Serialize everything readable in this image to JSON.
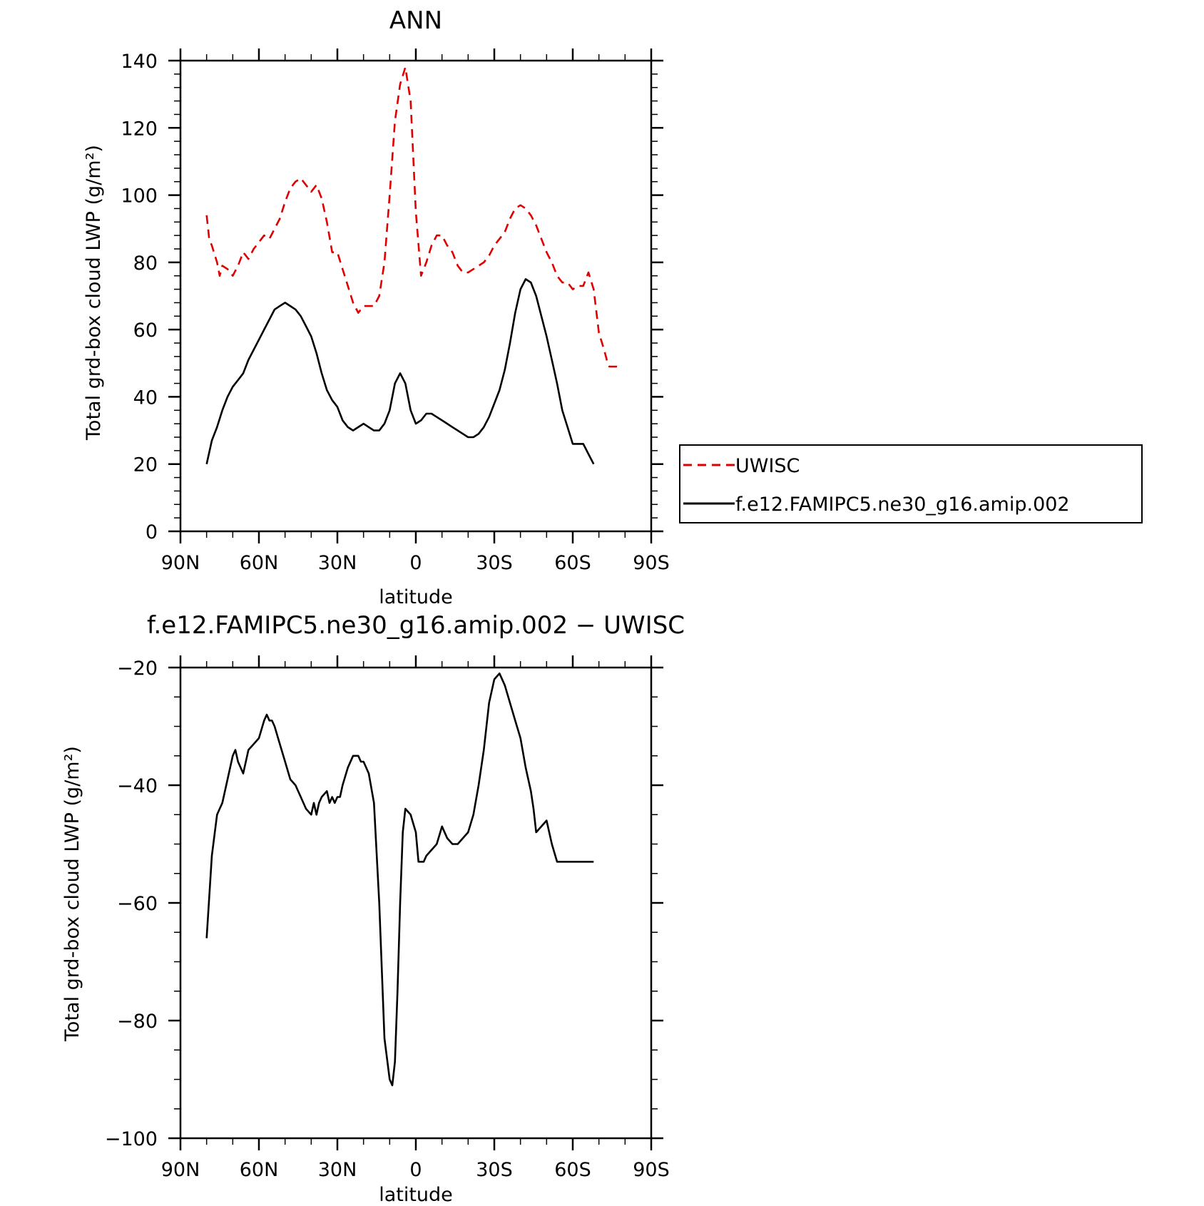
{
  "chart_data": [
    {
      "type": "line",
      "title": "ANN",
      "xlabel": "latitude",
      "ylabel": "Total grd-box cloud LWP (g/m²)",
      "xlim": [
        90,
        -90
      ],
      "ylim": [
        0,
        140
      ],
      "x_ticks": [
        90,
        60,
        30,
        0,
        -30,
        -60,
        -90
      ],
      "x_tick_labels": [
        "90N",
        "60N",
        "30N",
        "0",
        "30S",
        "60S",
        "90S"
      ],
      "y_ticks": [
        0,
        20,
        40,
        60,
        80,
        100,
        120,
        140
      ],
      "y_tick_labels": [
        "0",
        "20",
        "40",
        "60",
        "80",
        "100",
        "120",
        "140"
      ],
      "grid": false,
      "legend": "right",
      "series": [
        {
          "name": "UWISC",
          "color": "#e00000",
          "dash": "dashed",
          "x": [
            80,
            79,
            78,
            76,
            75,
            74,
            72,
            70,
            68,
            66,
            64,
            62,
            60,
            58,
            56,
            54,
            52,
            50,
            48,
            46,
            44,
            42,
            40,
            38,
            36,
            34,
            32,
            30,
            28,
            26,
            24,
            22,
            20,
            18,
            16,
            14,
            12,
            10,
            8,
            6,
            4,
            2,
            0,
            -2,
            -4,
            -6,
            -8,
            -10,
            -12,
            -14,
            -16,
            -18,
            -20,
            -22,
            -24,
            -26,
            -28,
            -30,
            -32,
            -34,
            -36,
            -38,
            -40,
            -42,
            -44,
            -46,
            -48,
            -50,
            -52,
            -54,
            -56,
            -58,
            -60,
            -62,
            -64,
            -66,
            -68,
            -70,
            -72,
            -73,
            -74,
            -76,
            -78
          ],
          "y": [
            94,
            87,
            85,
            80,
            76,
            79,
            78,
            76,
            79,
            83,
            81,
            84,
            86,
            88,
            87,
            90,
            93,
            98,
            102,
            104,
            105,
            103,
            101,
            103,
            99,
            92,
            83,
            83,
            78,
            73,
            68,
            65,
            67,
            67,
            67,
            70,
            80,
            100,
            122,
            133,
            138,
            128,
            95,
            76,
            80,
            85,
            88,
            88,
            85,
            83,
            79,
            77,
            77,
            78,
            79,
            80,
            82,
            85,
            87,
            89,
            93,
            96,
            97,
            96,
            94,
            91,
            87,
            83,
            80,
            76,
            74,
            74,
            72,
            73,
            73,
            77,
            72,
            59,
            54,
            51,
            49,
            49,
            49
          ]
        },
        {
          "name": "f.e12.FAMIPC5.ne30_g16.amip.002",
          "color": "#000000",
          "dash": "solid",
          "x": [
            80,
            78,
            76,
            74,
            72,
            70,
            68,
            66,
            64,
            62,
            60,
            58,
            56,
            54,
            52,
            50,
            48,
            46,
            44,
            42,
            40,
            38,
            36,
            34,
            32,
            30,
            28,
            26,
            24,
            22,
            20,
            18,
            16,
            14,
            12,
            10,
            8,
            6,
            4,
            2,
            0,
            -2,
            -4,
            -6,
            -8,
            -10,
            -12,
            -14,
            -16,
            -18,
            -20,
            -22,
            -24,
            -26,
            -28,
            -30,
            -32,
            -34,
            -36,
            -38,
            -40,
            -42,
            -44,
            -46,
            -48,
            -50,
            -52,
            -54,
            -56,
            -58,
            -60,
            -62,
            -64,
            -66,
            -68
          ],
          "y": [
            20,
            27,
            31,
            36,
            40,
            43,
            45,
            47,
            51,
            54,
            57,
            60,
            63,
            66,
            67,
            68,
            67,
            66,
            64,
            61,
            58,
            53,
            47,
            42,
            39,
            37,
            33,
            31,
            30,
            31,
            32,
            31,
            30,
            30,
            32,
            36,
            44,
            47,
            44,
            36,
            32,
            33,
            35,
            35,
            34,
            33,
            32,
            31,
            30,
            29,
            28,
            28,
            29,
            31,
            34,
            38,
            42,
            48,
            56,
            65,
            72,
            75,
            74,
            70,
            64,
            58,
            51,
            44,
            36,
            31,
            26,
            26,
            26,
            23,
            20
          ]
        }
      ]
    },
    {
      "type": "line",
      "title": "f.e12.FAMIPC5.ne30_g16.amip.002 − UWISC",
      "xlabel": "latitude",
      "ylabel": "Total grd-box cloud LWP (g/m²)",
      "xlim": [
        90,
        -90
      ],
      "ylim": [
        -100,
        -20
      ],
      "x_ticks": [
        90,
        60,
        30,
        0,
        -30,
        -60,
        -90
      ],
      "x_tick_labels": [
        "90N",
        "60N",
        "30N",
        "0",
        "30S",
        "60S",
        "90S"
      ],
      "y_ticks": [
        -100,
        -80,
        -60,
        -40,
        -20
      ],
      "y_tick_labels": [
        "−100",
        "−80",
        "−60",
        "−40",
        "−20"
      ],
      "grid": false,
      "series": [
        {
          "color": "#000000",
          "dash": "solid",
          "x": [
            80,
            78,
            76,
            75,
            74,
            72,
            70,
            69,
            68,
            66,
            64,
            62,
            60,
            58,
            57,
            56,
            55,
            54,
            52,
            50,
            48,
            46,
            44,
            42,
            40,
            39,
            38,
            37,
            36,
            34,
            33,
            32,
            31,
            30,
            29,
            28,
            26,
            24,
            23,
            22,
            21,
            20,
            18,
            16,
            14,
            12,
            10,
            9,
            8,
            7,
            6,
            5,
            4,
            2,
            0,
            -1,
            -2,
            -3,
            -4,
            -6,
            -8,
            -10,
            -12,
            -14,
            -16,
            -18,
            -20,
            -22,
            -24,
            -26,
            -28,
            -30,
            -32,
            -34,
            -36,
            -38,
            -40,
            -42,
            -44,
            -45,
            -46,
            -48,
            -50,
            -52,
            -54,
            -56,
            -58,
            -60,
            -62,
            -64,
            -65,
            -66,
            -68
          ],
          "y": [
            -66,
            -52,
            -45,
            -44,
            -43,
            -39,
            -35,
            -34,
            -36,
            -38,
            -34,
            -33,
            -32,
            -29,
            -28,
            -29,
            -29,
            -30,
            -33,
            -36,
            -39,
            -40,
            -42,
            -44,
            -45,
            -43,
            -45,
            -43,
            -42,
            -41,
            -43,
            -42,
            -43,
            -42,
            -42,
            -40,
            -37,
            -35,
            -35,
            -35,
            -36,
            -36,
            -38,
            -43,
            -60,
            -83,
            -90,
            -91,
            -87,
            -75,
            -60,
            -48,
            -44,
            -45,
            -48,
            -53,
            -53,
            -53,
            -52,
            -51,
            -50,
            -47,
            -49,
            -50,
            -50,
            -49,
            -48,
            -45,
            -40,
            -34,
            -26,
            -22,
            -21,
            -23,
            -26,
            -29,
            -32,
            -37,
            -41,
            -44,
            -48,
            -47,
            -46,
            -50,
            -53,
            -53,
            -53,
            -53,
            -53,
            -53,
            -53,
            -53,
            -53
          ]
        }
      ]
    }
  ]
}
